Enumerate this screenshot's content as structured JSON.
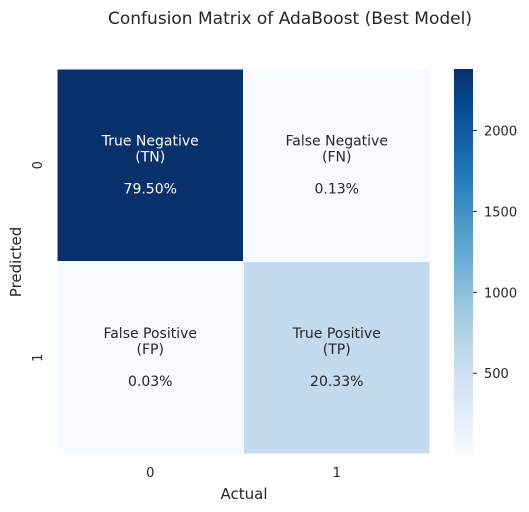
{
  "chart_data": {
    "type": "heatmap",
    "title": "Confusion Matrix of AdaBoost (Best Model)",
    "xlabel": "Actual",
    "ylabel": "Predicted",
    "x_tick_labels": [
      "0",
      "1"
    ],
    "y_tick_labels": [
      "0",
      "1"
    ],
    "cells": [
      {
        "row": 0,
        "col": 0,
        "name": "True Negative",
        "abbr": "(TN)",
        "percent": "79.50%",
        "value": 2380
      },
      {
        "row": 0,
        "col": 1,
        "name": "False Negative",
        "abbr": "(FN)",
        "percent": "0.13%",
        "value": 4
      },
      {
        "row": 1,
        "col": 0,
        "name": "False Positive",
        "abbr": "(FP)",
        "percent": "0.03%",
        "value": 1
      },
      {
        "row": 1,
        "col": 1,
        "name": "True Positive",
        "abbr": "(TP)",
        "percent": "20.33%",
        "value": 609
      }
    ],
    "colorbar": {
      "colormap": "Blues",
      "range": [
        1,
        2380
      ],
      "ticks": [
        500,
        1000,
        1500,
        2000
      ]
    }
  }
}
